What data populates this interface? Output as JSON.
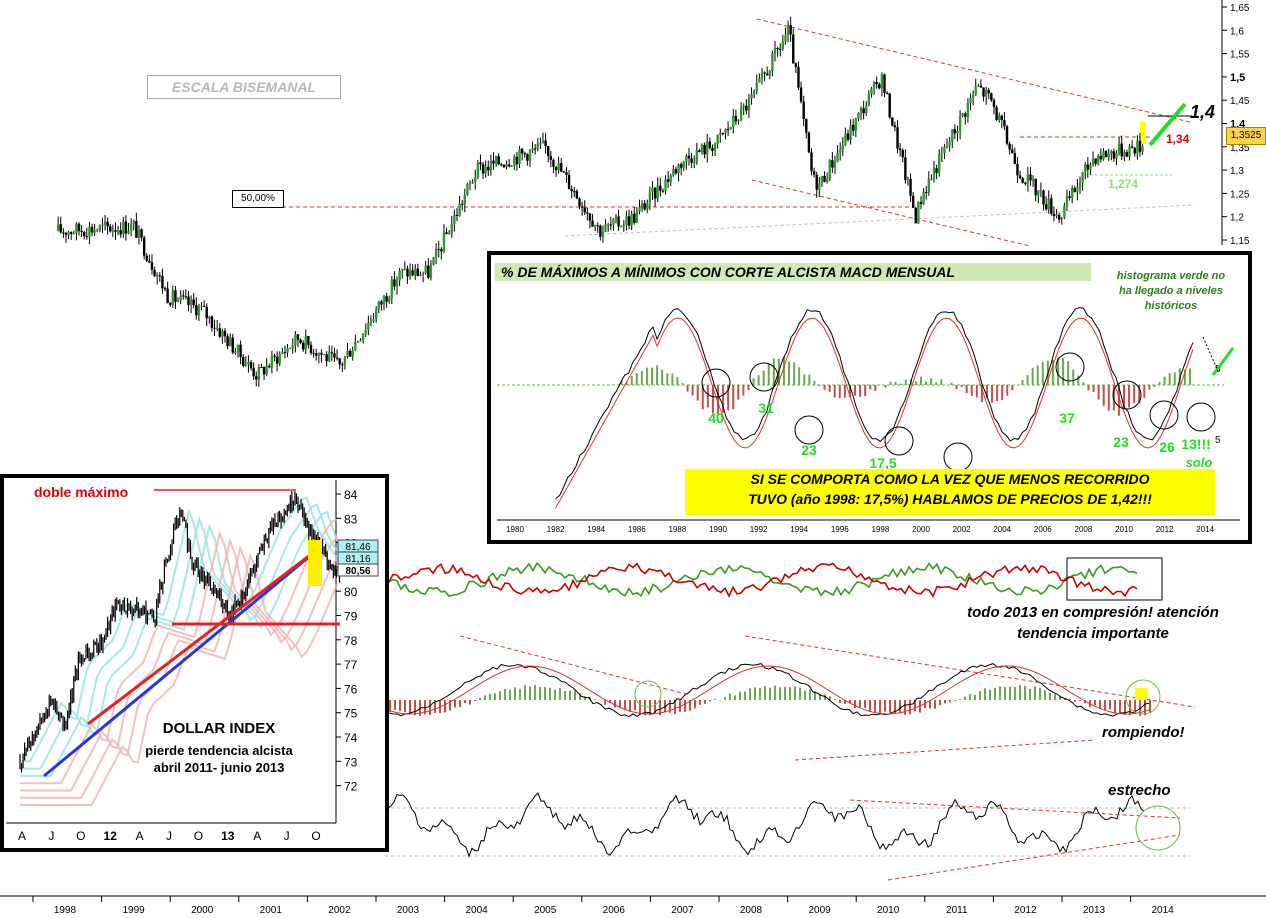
{
  "scale_label": "ESCALA BISEMANAL",
  "fib_label": "50,00%",
  "price_axis": {
    "ticks": [
      "1,65",
      "1,6",
      "1,55",
      "1,5",
      "1,45",
      "1,4",
      "1,35",
      "1,3",
      "1,25",
      "1,2",
      "1,15"
    ],
    "current_price": "1,3525",
    "colors": {
      "current_price_bg": "#ffd24d"
    }
  },
  "annotations": {
    "target_1_4": "1,4",
    "level_1_34": "1,34",
    "level_1_274": "1,274",
    "compresion_line1": "todo 2013 en compresión! atención",
    "compresion_line2": "tendencia importante",
    "rompiendo": "rompiendo!",
    "estrecho": "estrecho"
  },
  "year_axis": [
    "1998",
    "1999",
    "2000",
    "2001",
    "2002",
    "2003",
    "2004",
    "2005",
    "2006",
    "2007",
    "2008",
    "2009",
    "2010",
    "2011",
    "2012",
    "2013",
    "2014"
  ],
  "macd_inset": {
    "title": "% DE MÁXIMOS A MÍNIMOS CON CORTE ALCISTA MACD MENSUAL",
    "note_line1": "histograma verde no",
    "note_line2": "ha llegado a niveles",
    "note_line3": "históricos",
    "yellow_line1": "SI SE COMPORTA COMO LA VEZ QUE MENOS RECORRIDO",
    "yellow_line2": "TUVO (año 1998: 17,5%) HABLAMOS DE PRECIOS DE 1,42!!!",
    "percentages": [
      "40",
      "31",
      "23",
      "17,5",
      "37",
      "23",
      "26",
      "13!!!"
    ],
    "solo": "solo",
    "axis_ticks": [
      "5",
      "5"
    ],
    "years": [
      "1980",
      "1982",
      "1984",
      "1986",
      "1988",
      "1990",
      "1992",
      "1994",
      "1996",
      "1998",
      "2000",
      "2002",
      "2004",
      "2006",
      "2008",
      "2010",
      "2012",
      "2014"
    ]
  },
  "dollar_inset": {
    "title": "DOLLAR INDEX",
    "subtitle_line1": "pierde tendencia alcista",
    "subtitle_line2": "abril 2011- junio 2013",
    "doble_maximo": "doble máximo",
    "price_ticks": [
      "84",
      "83",
      "82",
      "81",
      "80",
      "79",
      "78",
      "77",
      "76",
      "75",
      "74",
      "73",
      "72"
    ],
    "price_tags": [
      "81,46",
      "81,16",
      "80,56"
    ],
    "months": [
      "A",
      "J",
      "O",
      "12",
      "A",
      "J",
      "O",
      "13",
      "A",
      "J",
      "O"
    ]
  },
  "chart_data": [
    {
      "type": "line",
      "series": [
        {
          "x": [
            1998.0,
            1999.0,
            1999.5,
            2000.0,
            2000.8,
            2001.4,
            2002.0,
            2002.9,
            2003.3,
            2004.0,
            2005.0,
            2005.8,
            2006.3,
            2007.0,
            2007.5,
            2008.0,
            2008.55,
            2008.9,
            2009.0,
            2009.9,
            2010.4,
            2010.5,
            2011.3,
            2011.5,
            2011.9,
            2012.5,
            2013.0,
            2013.7
          ],
          "y": [
            1.17,
            1.18,
            1.03,
            1.0,
            0.86,
            0.94,
            0.88,
            1.08,
            1.08,
            1.3,
            1.35,
            1.17,
            1.2,
            1.32,
            1.36,
            1.45,
            1.6,
            1.28,
            1.27,
            1.5,
            1.2,
            1.25,
            1.48,
            1.45,
            1.3,
            1.2,
            1.33,
            1.3525
          ]
        }
      ],
      "ylim": [
        0.84,
        1.67
      ]
    },
    {
      "type": "line",
      "series": [
        {
          "x": [
            2011.25,
            2011.5,
            2011.6,
            2011.7,
            2011.9,
            2012.0,
            2012.3,
            2012.5,
            2012.6,
            2012.85,
            2012.9,
            2013.0,
            2013.2,
            2013.4,
            2013.5,
            2013.75
          ],
          "y": [
            73.0,
            75.5,
            74.5,
            77.0,
            78.0,
            79.5,
            79.0,
            83.5,
            81.0,
            79.5,
            79.0,
            80.0,
            82.5,
            84.0,
            82.5,
            80.56
          ]
        }
      ],
      "ylim": [
        71.5,
        84.5
      ]
    }
  ]
}
